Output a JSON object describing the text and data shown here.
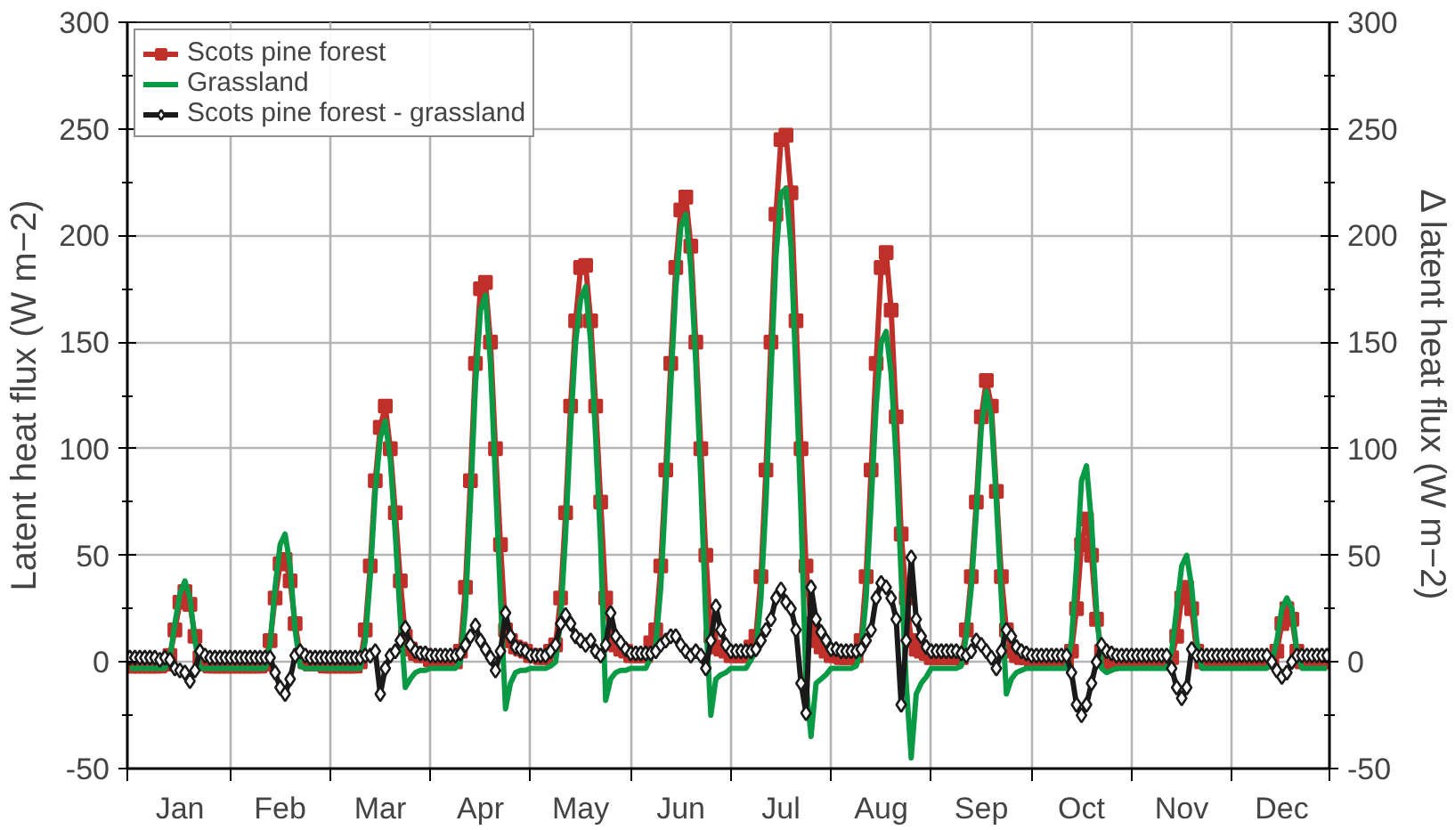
{
  "chart_data": {
    "type": "line",
    "ylabel": "Latent heat flux (W m−2)",
    "y2label": "Δ latent heat flux (W m−2)",
    "categories": [
      null,
      null,
      null,
      null,
      null,
      null,
      null,
      null,
      null,
      null,
      "Jan",
      null,
      null,
      null,
      null,
      null,
      null,
      null,
      null,
      null,
      null,
      null,
      null,
      null,
      null,
      null,
      null,
      null,
      null,
      null,
      "Feb",
      null,
      null,
      null,
      null,
      null,
      null,
      null,
      null,
      null,
      null,
      null,
      null,
      null,
      null,
      null,
      null,
      null,
      null,
      null,
      "Mar",
      null,
      null,
      null,
      null,
      null,
      null,
      null,
      null,
      null,
      null,
      null,
      null,
      null,
      null,
      null,
      null,
      null,
      null,
      null,
      "Apr",
      null,
      null,
      null,
      null,
      null,
      null,
      null,
      null,
      null,
      null,
      null,
      null,
      null,
      null,
      null,
      null,
      null,
      null,
      null,
      "May",
      null,
      null,
      null,
      null,
      null,
      null,
      null,
      null,
      null,
      null,
      null,
      null,
      null,
      null,
      null,
      null,
      null,
      null,
      null,
      "Jun",
      null,
      null,
      null,
      null,
      null,
      null,
      null,
      null,
      null,
      null,
      null,
      null,
      null,
      null,
      null,
      null,
      null,
      null,
      null,
      "Jul",
      null,
      null,
      null,
      null,
      null,
      null,
      null,
      null,
      null,
      null,
      null,
      null,
      null,
      null,
      null,
      null,
      null,
      null,
      null,
      "Aug",
      null,
      null,
      null,
      null,
      null,
      null,
      null,
      null,
      null,
      null,
      null,
      null,
      null,
      null,
      null,
      null,
      null,
      null,
      null,
      "Sep",
      null,
      null,
      null,
      null,
      null,
      null,
      null,
      null,
      null,
      null,
      null,
      null,
      null,
      null,
      null,
      null,
      null,
      null,
      null,
      "Oct",
      null,
      null,
      null,
      null,
      null,
      null,
      null,
      null,
      null,
      null,
      null,
      null,
      null,
      null,
      null,
      null,
      null,
      null,
      null,
      "Nov",
      null,
      null,
      null,
      null,
      null,
      null,
      null,
      null,
      null,
      null,
      null,
      null,
      null,
      null,
      null,
      null,
      null,
      null,
      null,
      "Dec",
      null,
      null,
      null,
      null,
      null,
      null,
      null,
      null,
      null
    ],
    "series": [
      {
        "name": "Scots pine forest",
        "color": "#c0302a",
        "marker": "square",
        "values": [
          -2,
          -2,
          -2,
          -2,
          -2,
          -2,
          -2,
          -1,
          3,
          15,
          28,
          33,
          27,
          12,
          2,
          -1,
          -2,
          -2,
          -2,
          -2,
          -2,
          -2,
          -2,
          -2,
          -2,
          -2,
          -2,
          -1,
          10,
          30,
          46,
          48,
          38,
          18,
          3,
          0,
          -1,
          -1,
          -1,
          -2,
          -2,
          -2,
          -2,
          -2,
          -2,
          -2,
          0,
          15,
          45,
          85,
          110,
          120,
          100,
          70,
          38,
          12,
          6,
          4,
          3,
          3,
          1,
          1,
          0,
          0,
          0,
          0,
          5,
          35,
          85,
          140,
          175,
          178,
          150,
          100,
          55,
          15,
          10,
          7,
          6,
          5,
          3,
          3,
          2,
          2,
          5,
          8,
          30,
          70,
          120,
          160,
          185,
          186,
          160,
          120,
          75,
          30,
          12,
          8,
          6,
          5,
          3,
          3,
          3,
          3,
          9,
          15,
          45,
          90,
          140,
          185,
          212,
          218,
          195,
          150,
          100,
          50,
          12,
          7,
          6,
          5,
          3,
          3,
          3,
          3,
          7,
          12,
          40,
          90,
          150,
          210,
          245,
          247,
          220,
          160,
          100,
          45,
          18,
          10,
          7,
          5,
          3,
          3,
          2,
          2,
          2,
          3,
          10,
          40,
          90,
          140,
          185,
          192,
          165,
          115,
          60,
          30,
          10,
          6,
          5,
          4,
          2,
          2,
          2,
          2,
          2,
          2,
          2,
          15,
          40,
          75,
          115,
          132,
          120,
          80,
          40,
          15,
          5,
          3,
          2,
          2,
          0,
          0,
          0,
          0,
          0,
          0,
          0,
          0,
          5,
          25,
          55,
          67,
          50,
          20,
          5,
          0,
          -1,
          0,
          0,
          0,
          0,
          0,
          0,
          0,
          0,
          0,
          0,
          0,
          2,
          12,
          30,
          35,
          25,
          5,
          0,
          0,
          0,
          0,
          0,
          0,
          0,
          0,
          0,
          0,
          0,
          0,
          0,
          0,
          0,
          5,
          18,
          25,
          20,
          5,
          0,
          0,
          0,
          0,
          0,
          0
        ]
      },
      {
        "name": "Grassland",
        "color": "#0a9a46",
        "marker": "none",
        "values": [
          -3,
          -3,
          -3,
          -3,
          -3,
          -3,
          -3,
          -3,
          2,
          18,
          32,
          38,
          30,
          10,
          -3,
          -3,
          -3,
          -3,
          -3,
          -3,
          -3,
          -3,
          -3,
          -3,
          -3,
          -3,
          -3,
          -3,
          8,
          35,
          55,
          60,
          45,
          15,
          -2,
          -3,
          -3,
          -3,
          -3,
          -3,
          -3,
          -3,
          -3,
          -3,
          -3,
          -3,
          -3,
          10,
          40,
          80,
          105,
          113,
          95,
          60,
          20,
          -12,
          -8,
          -5,
          -4,
          -4,
          -3,
          -3,
          -3,
          -3,
          -3,
          -3,
          0,
          25,
          75,
          130,
          165,
          172,
          140,
          85,
          30,
          -22,
          -10,
          -5,
          -4,
          -4,
          -3,
          -3,
          -3,
          -3,
          -2,
          0,
          20,
          60,
          110,
          150,
          170,
          176,
          150,
          105,
          55,
          -18,
          -8,
          -5,
          -4,
          -4,
          -3,
          -3,
          -3,
          -3,
          2,
          8,
          35,
          80,
          130,
          175,
          204,
          210,
          185,
          140,
          85,
          20,
          -25,
          -8,
          -6,
          -5,
          -3,
          -3,
          -3,
          -3,
          1,
          5,
          30,
          75,
          135,
          190,
          220,
          222,
          195,
          135,
          70,
          -10,
          -35,
          -10,
          -8,
          -6,
          -3,
          -3,
          -3,
          -3,
          -3,
          -2,
          5,
          30,
          75,
          120,
          150,
          155,
          135,
          95,
          40,
          -10,
          -45,
          -15,
          -10,
          -7,
          -3,
          -3,
          -3,
          -3,
          -3,
          -3,
          -2,
          12,
          35,
          70,
          110,
          127,
          115,
          75,
          30,
          -15,
          -8,
          -5,
          -4,
          -3,
          -3,
          -3,
          -3,
          -3,
          -3,
          -3,
          -3,
          -3,
          10,
          45,
          85,
          92,
          65,
          25,
          -3,
          -5,
          -4,
          -3,
          -3,
          -3,
          -3,
          -3,
          -3,
          -3,
          -3,
          -3,
          -3,
          -3,
          5,
          25,
          45,
          50,
          35,
          10,
          -3,
          -3,
          -3,
          -3,
          -3,
          -3,
          -3,
          -3,
          -3,
          -3,
          -3,
          -3,
          -3,
          -3,
          0,
          10,
          25,
          30,
          25,
          5,
          -3,
          -3,
          -3,
          -3,
          -3,
          -3
        ]
      },
      {
        "name": "Scots pine forest - grassland",
        "color": "#1a1a1a",
        "marker": "diamond",
        "axis": "y2",
        "values": [
          2,
          2,
          2,
          2,
          2,
          2,
          1,
          2,
          1,
          -3,
          -4,
          -5,
          -9,
          -4,
          5,
          3,
          2,
          2,
          2,
          2,
          2,
          2,
          2,
          2,
          2,
          2,
          2,
          2,
          2,
          -5,
          -12,
          -15,
          -8,
          3,
          5,
          3,
          2,
          2,
          2,
          2,
          2,
          2,
          2,
          2,
          2,
          2,
          2,
          3,
          3,
          5,
          -15,
          -3,
          3,
          5,
          10,
          16,
          8,
          5,
          4,
          4,
          3,
          3,
          3,
          3,
          3,
          3,
          4,
          8,
          12,
          17,
          10,
          6,
          2,
          -4,
          5,
          23,
          12,
          7,
          6,
          5,
          3,
          3,
          3,
          3,
          5,
          8,
          18,
          22,
          18,
          12,
          10,
          8,
          10,
          5,
          3,
          8,
          23,
          12,
          9,
          6,
          4,
          4,
          4,
          4,
          4,
          5,
          8,
          10,
          12,
          12,
          8,
          5,
          3,
          5,
          3,
          -3,
          10,
          26,
          15,
          8,
          5,
          5,
          5,
          5,
          5,
          6,
          10,
          15,
          20,
          30,
          34,
          28,
          25,
          15,
          -10,
          -24,
          35,
          20,
          14,
          10,
          6,
          6,
          5,
          5,
          5,
          5,
          6,
          10,
          15,
          30,
          37,
          35,
          30,
          20,
          -20,
          10,
          49,
          20,
          12,
          7,
          5,
          5,
          5,
          5,
          5,
          5,
          4,
          3,
          5,
          10,
          8,
          5,
          2,
          -3,
          5,
          15,
          12,
          7,
          5,
          4,
          3,
          3,
          3,
          3,
          3,
          3,
          3,
          3,
          -5,
          -20,
          -25,
          -20,
          -10,
          0,
          8,
          5,
          4,
          3,
          3,
          3,
          3,
          3,
          3,
          3,
          3,
          3,
          3,
          3,
          -3,
          -12,
          -17,
          -12,
          6,
          3,
          3,
          3,
          3,
          3,
          3,
          3,
          3,
          3,
          3,
          3,
          3,
          3,
          3,
          3,
          0,
          -4,
          -7,
          -5,
          0,
          3,
          3,
          3,
          3,
          3,
          3,
          3
        ]
      }
    ],
    "ylim": [
      -50,
      300
    ],
    "yticks": [
      -50,
      {
        "value": -25,
        "label": null
      },
      0,
      {
        "value": 25,
        "label": null
      },
      50,
      {
        "value": 75,
        "label": null
      },
      100,
      {
        "value": 125,
        "label": null
      },
      150,
      {
        "value": 175,
        "label": null
      },
      200,
      {
        "value": 225,
        "label": null
      },
      250,
      {
        "value": 275,
        "label": null
      },
      300
    ],
    "y2lim": [
      -50,
      300
    ],
    "y2ticks": [
      -50,
      {
        "value": -25,
        "label": null
      },
      0,
      {
        "value": 25,
        "label": null
      },
      50,
      {
        "value": 75,
        "label": null
      },
      100,
      {
        "value": 125,
        "label": null
      },
      150,
      {
        "value": 175,
        "label": null
      },
      200,
      {
        "value": 225,
        "label": null
      },
      250,
      {
        "value": 275,
        "label": null
      },
      300
    ],
    "grid": true,
    "legend": "top left",
    "line_style": "solid"
  }
}
